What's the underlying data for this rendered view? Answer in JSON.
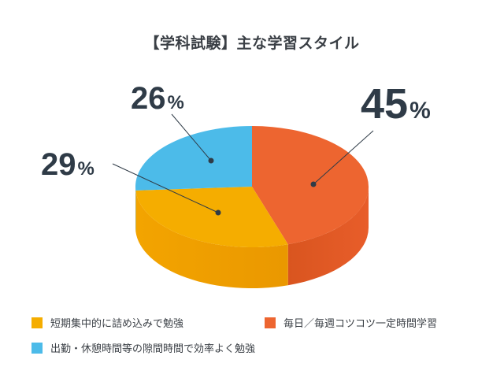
{
  "colors": {
    "short_term": "#f5ad00",
    "daily": "#ed6530",
    "gaps": "#4cbbe9",
    "label_text": "#2f3b47"
  },
  "chart_data": {
    "type": "pie",
    "title": "【学科試験】主な学習スタイル",
    "slices": [
      {
        "label": "毎日／毎週コツコツ一定時間学習",
        "value": 45,
        "display": "45"
      },
      {
        "label": "短期集中的に詰め込みで勉強",
        "value": 29,
        "display": "29"
      },
      {
        "label": "出勤・休憩時間等の隙間時間で効率よく勉強",
        "value": 26,
        "display": "26"
      }
    ],
    "unit": "%",
    "legend_position": "bottom"
  }
}
